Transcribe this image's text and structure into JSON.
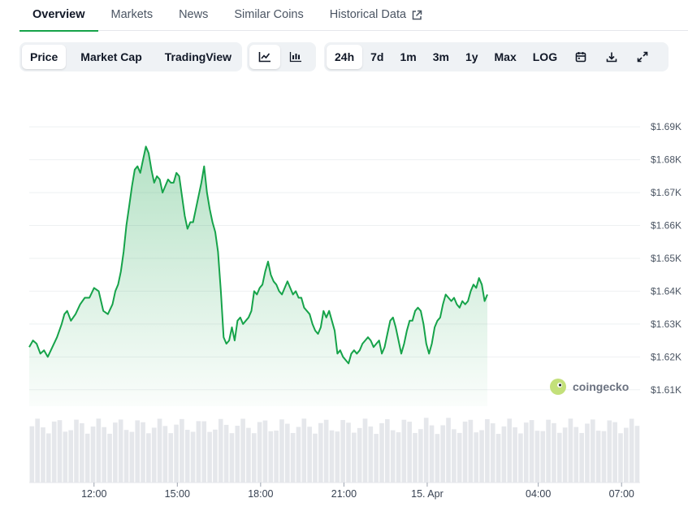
{
  "tabs": [
    {
      "label": "Overview",
      "active": true
    },
    {
      "label": "Markets",
      "active": false
    },
    {
      "label": "News",
      "active": false
    },
    {
      "label": "Similar Coins",
      "active": false
    },
    {
      "label": "Historical Data",
      "active": false,
      "external_icon": "external-link-icon"
    }
  ],
  "toolbar": {
    "chart_type_buttons": [
      {
        "label": "Price",
        "selected": true
      },
      {
        "label": "Market Cap",
        "selected": false
      },
      {
        "label": "TradingView",
        "selected": false
      }
    ],
    "view_icons": [
      {
        "icon": "line-chart-icon",
        "selected": true
      },
      {
        "icon": "candlestick-chart-icon",
        "selected": false
      }
    ],
    "range_buttons": [
      {
        "label": "24h",
        "selected": true
      },
      {
        "label": "7d",
        "selected": false
      },
      {
        "label": "1m",
        "selected": false
      },
      {
        "label": "3m",
        "selected": false
      },
      {
        "label": "1y",
        "selected": false
      },
      {
        "label": "Max",
        "selected": false
      },
      {
        "label": "LOG",
        "selected": false
      }
    ],
    "action_icons": [
      "calendar-icon",
      "download-icon",
      "expand-icon"
    ]
  },
  "watermark": {
    "text": "coingecko",
    "icon": "gecko-logo-icon"
  },
  "colors": {
    "line": "#16a34a",
    "fill": "#16a34a",
    "grid": "#eef0f2",
    "volume": "#e5e7eb"
  },
  "chart_data": {
    "type": "area",
    "title": "",
    "xlabel": "",
    "ylabel": "",
    "x_domain": [
      "2025-04-14 09:40",
      "2025-04-15 07:40"
    ],
    "x_ticks": [
      {
        "t": "2025-04-14 12:00",
        "label": "12:00"
      },
      {
        "t": "2025-04-14 15:00",
        "label": "15:00"
      },
      {
        "t": "2025-04-14 18:00",
        "label": "18:00"
      },
      {
        "t": "2025-04-14 21:00",
        "label": "21:00"
      },
      {
        "t": "2025-04-15 00:00",
        "label": "15. Apr"
      },
      {
        "t": "2025-04-15 04:00",
        "label": "04:00"
      },
      {
        "t": "2025-04-15 07:00",
        "label": "07:00"
      }
    ],
    "ylim": [
      1605,
      1694
    ],
    "y_ticks": [
      {
        "v": 1690,
        "label": "$1.69K"
      },
      {
        "v": 1680,
        "label": "$1.68K"
      },
      {
        "v": 1670,
        "label": "$1.67K"
      },
      {
        "v": 1660,
        "label": "$1.66K"
      },
      {
        "v": 1650,
        "label": "$1.65K"
      },
      {
        "v": 1640,
        "label": "$1.64K"
      },
      {
        "v": 1630,
        "label": "$1.63K"
      },
      {
        "v": 1620,
        "label": "$1.62K"
      },
      {
        "v": 1610,
        "label": "$1.61K"
      }
    ],
    "grid": true,
    "legend": "none",
    "series": [
      {
        "points": [
          [
            "2025-04-14 09:40",
            1623
          ],
          [
            "2025-04-14 09:48",
            1625
          ],
          [
            "2025-04-14 09:56",
            1624
          ],
          [
            "2025-04-14 10:04",
            1621
          ],
          [
            "2025-04-14 10:12",
            1622
          ],
          [
            "2025-04-14 10:20",
            1620
          ],
          [
            "2025-04-14 10:30",
            1623
          ],
          [
            "2025-04-14 10:40",
            1626
          ],
          [
            "2025-04-14 10:50",
            1630
          ],
          [
            "2025-04-14 10:56",
            1633
          ],
          [
            "2025-04-14 11:02",
            1634
          ],
          [
            "2025-04-14 11:10",
            1631
          ],
          [
            "2025-04-14 11:20",
            1633
          ],
          [
            "2025-04-14 11:30",
            1636
          ],
          [
            "2025-04-14 11:40",
            1638
          ],
          [
            "2025-04-14 11:50",
            1638
          ],
          [
            "2025-04-14 12:00",
            1641
          ],
          [
            "2025-04-14 12:10",
            1640
          ],
          [
            "2025-04-14 12:20",
            1634
          ],
          [
            "2025-04-14 12:30",
            1633
          ],
          [
            "2025-04-14 12:40",
            1636
          ],
          [
            "2025-04-14 12:46",
            1640
          ],
          [
            "2025-04-14 12:52",
            1642
          ],
          [
            "2025-04-14 12:58",
            1646
          ],
          [
            "2025-04-14 13:04",
            1652
          ],
          [
            "2025-04-14 13:10",
            1660
          ],
          [
            "2025-04-14 13:16",
            1666
          ],
          [
            "2025-04-14 13:22",
            1672
          ],
          [
            "2025-04-14 13:28",
            1677
          ],
          [
            "2025-04-14 13:34",
            1678
          ],
          [
            "2025-04-14 13:40",
            1676
          ],
          [
            "2025-04-14 13:46",
            1680
          ],
          [
            "2025-04-14 13:52",
            1684
          ],
          [
            "2025-04-14 13:58",
            1682
          ],
          [
            "2025-04-14 14:04",
            1677
          ],
          [
            "2025-04-14 14:10",
            1673
          ],
          [
            "2025-04-14 14:16",
            1675
          ],
          [
            "2025-04-14 14:22",
            1674
          ],
          [
            "2025-04-14 14:28",
            1670
          ],
          [
            "2025-04-14 14:34",
            1672
          ],
          [
            "2025-04-14 14:40",
            1674
          ],
          [
            "2025-04-14 14:46",
            1673
          ],
          [
            "2025-04-14 14:52",
            1673
          ],
          [
            "2025-04-14 14:58",
            1676
          ],
          [
            "2025-04-14 15:04",
            1675
          ],
          [
            "2025-04-14 15:10",
            1669
          ],
          [
            "2025-04-14 15:16",
            1663
          ],
          [
            "2025-04-14 15:22",
            1659
          ],
          [
            "2025-04-14 15:28",
            1661
          ],
          [
            "2025-04-14 15:34",
            1661
          ],
          [
            "2025-04-14 15:40",
            1665
          ],
          [
            "2025-04-14 15:46",
            1669
          ],
          [
            "2025-04-14 15:52",
            1673
          ],
          [
            "2025-04-14 15:58",
            1678
          ],
          [
            "2025-04-14 16:04",
            1670
          ],
          [
            "2025-04-14 16:10",
            1665
          ],
          [
            "2025-04-14 16:16",
            1661
          ],
          [
            "2025-04-14 16:22",
            1658
          ],
          [
            "2025-04-14 16:28",
            1652
          ],
          [
            "2025-04-14 16:34",
            1640
          ],
          [
            "2025-04-14 16:40",
            1626
          ],
          [
            "2025-04-14 16:46",
            1624
          ],
          [
            "2025-04-14 16:52",
            1625
          ],
          [
            "2025-04-14 16:58",
            1629
          ],
          [
            "2025-04-14 17:04",
            1625
          ],
          [
            "2025-04-14 17:10",
            1631
          ],
          [
            "2025-04-14 17:16",
            1632
          ],
          [
            "2025-04-14 17:22",
            1630
          ],
          [
            "2025-04-14 17:28",
            1631
          ],
          [
            "2025-04-14 17:34",
            1632
          ],
          [
            "2025-04-14 17:40",
            1634
          ],
          [
            "2025-04-14 17:46",
            1640
          ],
          [
            "2025-04-14 17:52",
            1639
          ],
          [
            "2025-04-14 17:58",
            1641
          ],
          [
            "2025-04-14 18:04",
            1642
          ],
          [
            "2025-04-14 18:10",
            1646
          ],
          [
            "2025-04-14 18:16",
            1649
          ],
          [
            "2025-04-14 18:22",
            1645
          ],
          [
            "2025-04-14 18:28",
            1643
          ],
          [
            "2025-04-14 18:34",
            1642
          ],
          [
            "2025-04-14 18:40",
            1640
          ],
          [
            "2025-04-14 18:46",
            1639
          ],
          [
            "2025-04-14 18:52",
            1641
          ],
          [
            "2025-04-14 18:58",
            1643
          ],
          [
            "2025-04-14 19:04",
            1641
          ],
          [
            "2025-04-14 19:10",
            1639
          ],
          [
            "2025-04-14 19:16",
            1640
          ],
          [
            "2025-04-14 19:22",
            1638
          ],
          [
            "2025-04-14 19:28",
            1638
          ],
          [
            "2025-04-14 19:34",
            1635
          ],
          [
            "2025-04-14 19:40",
            1634
          ],
          [
            "2025-04-14 19:46",
            1633
          ],
          [
            "2025-04-14 19:52",
            1630
          ],
          [
            "2025-04-14 19:58",
            1628
          ],
          [
            "2025-04-14 20:04",
            1627
          ],
          [
            "2025-04-14 20:10",
            1629
          ],
          [
            "2025-04-14 20:16",
            1634
          ],
          [
            "2025-04-14 20:22",
            1632
          ],
          [
            "2025-04-14 20:28",
            1634
          ],
          [
            "2025-04-14 20:34",
            1631
          ],
          [
            "2025-04-14 20:40",
            1628
          ],
          [
            "2025-04-14 20:46",
            1621
          ],
          [
            "2025-04-14 20:52",
            1622
          ],
          [
            "2025-04-14 20:58",
            1620
          ],
          [
            "2025-04-14 21:04",
            1619
          ],
          [
            "2025-04-14 21:10",
            1618
          ],
          [
            "2025-04-14 21:16",
            1621
          ],
          [
            "2025-04-14 21:22",
            1622
          ],
          [
            "2025-04-14 21:28",
            1621
          ],
          [
            "2025-04-14 21:34",
            1622
          ],
          [
            "2025-04-14 21:40",
            1624
          ],
          [
            "2025-04-14 21:46",
            1625
          ],
          [
            "2025-04-14 21:52",
            1626
          ],
          [
            "2025-04-14 21:58",
            1625
          ],
          [
            "2025-04-14 22:04",
            1623
          ],
          [
            "2025-04-14 22:10",
            1624
          ],
          [
            "2025-04-14 22:16",
            1625
          ],
          [
            "2025-04-14 22:22",
            1621
          ],
          [
            "2025-04-14 22:28",
            1623
          ],
          [
            "2025-04-14 22:34",
            1627
          ],
          [
            "2025-04-14 22:40",
            1631
          ],
          [
            "2025-04-14 22:46",
            1632
          ],
          [
            "2025-04-14 22:52",
            1629
          ],
          [
            "2025-04-14 22:58",
            1625
          ],
          [
            "2025-04-14 23:04",
            1621
          ],
          [
            "2025-04-14 23:10",
            1624
          ],
          [
            "2025-04-14 23:16",
            1628
          ],
          [
            "2025-04-14 23:22",
            1631
          ],
          [
            "2025-04-14 23:28",
            1631
          ],
          [
            "2025-04-14 23:34",
            1634
          ],
          [
            "2025-04-14 23:40",
            1635
          ],
          [
            "2025-04-14 23:46",
            1634
          ],
          [
            "2025-04-14 23:52",
            1630
          ],
          [
            "2025-04-14 23:58",
            1624
          ],
          [
            "2025-04-15 00:04",
            1621
          ],
          [
            "2025-04-15 00:10",
            1624
          ],
          [
            "2025-04-15 00:16",
            1629
          ],
          [
            "2025-04-15 00:22",
            1631
          ],
          [
            "2025-04-15 00:28",
            1632
          ],
          [
            "2025-04-15 00:34",
            1636
          ],
          [
            "2025-04-15 00:40",
            1639
          ],
          [
            "2025-04-15 00:46",
            1638
          ],
          [
            "2025-04-15 00:52",
            1637
          ],
          [
            "2025-04-15 00:58",
            1638
          ],
          [
            "2025-04-15 01:04",
            1636
          ],
          [
            "2025-04-15 01:10",
            1635
          ],
          [
            "2025-04-15 01:16",
            1637
          ],
          [
            "2025-04-15 01:22",
            1636
          ],
          [
            "2025-04-15 01:28",
            1637
          ],
          [
            "2025-04-15 01:34",
            1640
          ],
          [
            "2025-04-15 01:40",
            1642
          ],
          [
            "2025-04-15 01:46",
            1641
          ],
          [
            "2025-04-15 01:52",
            1644
          ],
          [
            "2025-04-15 01:58",
            1642
          ],
          [
            "2025-04-15 02:04",
            1637
          ],
          [
            "2025-04-15 02:10",
            1639
          ]
        ]
      }
    ],
    "volume": {
      "note_values": "relative volume bars",
      "values": [
        0.62,
        0.62,
        0.63,
        0.62,
        0.63,
        0.62,
        0.62,
        0.63,
        0.62,
        0.62,
        0.62,
        0.63,
        0.62,
        0.62,
        0.62,
        0.63,
        0.62,
        0.63,
        0.62,
        0.62,
        0.62,
        0.62,
        0.63,
        0.62,
        0.62,
        0.63,
        0.62,
        0.62,
        0.62,
        0.63,
        0.62,
        0.62,
        0.63,
        0.62,
        0.62,
        0.62,
        0.63,
        0.62,
        0.62,
        0.63,
        0.62,
        0.62,
        0.62,
        0.63,
        0.62,
        0.62,
        0.62,
        0.63,
        0.62,
        0.62,
        0.63,
        0.62,
        0.62,
        0.62,
        0.63,
        0.62,
        0.62,
        0.62,
        0.63,
        0.62,
        0.62,
        0.62,
        0.62,
        0.63,
        0.62,
        0.62,
        0.62,
        0.63,
        0.62,
        0.62,
        0.62,
        0.63,
        0.62,
        0.62,
        0.62,
        0.63,
        0.62,
        0.62,
        0.62,
        0.63,
        0.62,
        0.62,
        0.62,
        0.63,
        0.62,
        0.62,
        0.62,
        0.63,
        0.62,
        0.62,
        0.62,
        0.63,
        0.62,
        0.62,
        0.62,
        0.63,
        0.62,
        0.62,
        0.62,
        0.63,
        0.62,
        0.62,
        0.62,
        0.63,
        0.62,
        0.62,
        0.62,
        0.63,
        0.62,
        0.62
      ]
    }
  }
}
